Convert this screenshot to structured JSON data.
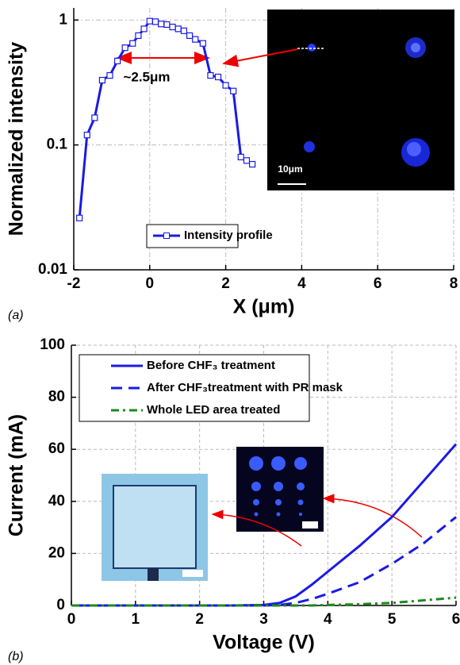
{
  "chart_data": [
    {
      "type": "line",
      "y_scale": "log",
      "y_label": "Normalized intensity",
      "x_label": "X (μm)",
      "panel_label": "(a)",
      "annotations": [
        "~2.5μm",
        "10μm"
      ],
      "x": [
        -1.85,
        -1.65,
        -1.45,
        -1.25,
        -1.05,
        -0.85,
        -0.65,
        -0.45,
        -0.3,
        -0.15,
        0,
        0.15,
        0.3,
        0.45,
        0.6,
        0.75,
        0.9,
        1.05,
        1.2,
        1.4,
        1.6,
        1.8,
        2.0,
        2.2,
        2.4,
        2.55,
        2.7
      ],
      "series": [
        {
          "name": "Intensity profile",
          "color": "#1a1ae6",
          "linestyle": "solid",
          "marker": "square",
          "values": [
            0.026,
            0.12,
            0.165,
            0.33,
            0.36,
            0.47,
            0.6,
            0.65,
            0.75,
            0.85,
            0.98,
            0.97,
            0.93,
            0.92,
            0.88,
            0.85,
            0.82,
            0.75,
            0.7,
            0.65,
            0.36,
            0.35,
            0.3,
            0.27,
            0.08,
            0.075,
            0.07
          ]
        }
      ],
      "xlim": [
        -2,
        8
      ],
      "xticks": [
        -2,
        0,
        2,
        4,
        6,
        8
      ],
      "ylim": [
        0.01,
        1.25
      ],
      "yticks": [
        0.01,
        0.1,
        1
      ],
      "grid": true,
      "legend": "lower center"
    },
    {
      "type": "line",
      "y_label": "Current (mA)",
      "x_label": "Voltage (V)",
      "panel_label": "(b)",
      "x": [
        0,
        0.5,
        1,
        1.5,
        2,
        2.5,
        3,
        3.25,
        3.5,
        3.75,
        4,
        4.5,
        5,
        5.5,
        6
      ],
      "series": [
        {
          "name": "Before CHF₃ treatment",
          "color": "#1a1ae6",
          "linestyle": "solid",
          "values": [
            0,
            0,
            0,
            0,
            0,
            0,
            0.2,
            1,
            3.5,
            8,
            13,
            23,
            34,
            48,
            62
          ]
        },
        {
          "name": "After CHF₃treatment with PR mask",
          "color": "#1a1ae6",
          "linestyle": "dashed",
          "values": [
            0,
            0,
            0,
            0,
            0,
            0,
            0,
            0.2,
            1,
            2.5,
            4.5,
            9,
            16,
            24,
            34
          ]
        },
        {
          "name": "Whole LED area treated",
          "color": "#1a8a1a",
          "linestyle": "dashdot",
          "values": [
            0,
            0,
            0,
            0,
            0,
            0,
            0,
            0,
            0,
            0,
            0.2,
            0.5,
            1,
            2,
            3
          ]
        }
      ],
      "xlim": [
        0,
        6
      ],
      "xticks": [
        0,
        1,
        2,
        3,
        4,
        5,
        6
      ],
      "ylim": [
        0,
        100
      ],
      "yticks": [
        0,
        20,
        40,
        60,
        80,
        100
      ],
      "grid": true,
      "legend": "upper left"
    }
  ]
}
